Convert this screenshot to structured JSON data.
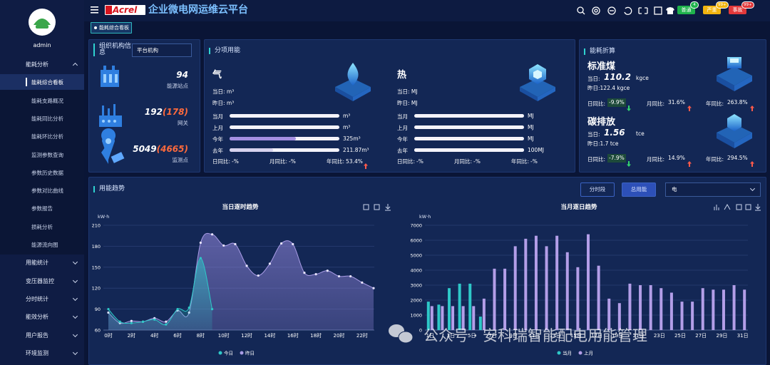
{
  "sidebar": {
    "user": "admin",
    "menu": [
      {
        "label": "能耗分析",
        "children": [
          "能耗综合看板",
          "能耗支路概况",
          "能耗同比分析",
          "能耗环比分析",
          "监测参数查询",
          "参数历史数据",
          "参数对比曲线",
          "参数报告",
          "损耗分析",
          "能源流向图"
        ]
      },
      {
        "label": "用能统计"
      },
      {
        "label": "变压器监控"
      },
      {
        "label": "分时统计"
      },
      {
        "label": "能效分析"
      },
      {
        "label": "用户报告"
      },
      {
        "label": "环境监测"
      }
    ]
  },
  "header": {
    "logo": "Acrel",
    "title": "企业微电网运维云平台",
    "alarms": [
      {
        "label": "普通",
        "count": "4",
        "color": "#1fb24c"
      },
      {
        "label": "严重",
        "count": "99+",
        "color": "#f1b40f"
      },
      {
        "label": "事故",
        "count": "99+",
        "color": "#e2383a"
      }
    ],
    "tab": "能耗综合看板"
  },
  "org": {
    "title": "组织机构信息",
    "select": "平台机构",
    "stats": [
      {
        "value": "94",
        "label": "能源站点"
      },
      {
        "value": "192",
        "extra": "(178)",
        "label": "网关"
      },
      {
        "value": "5049",
        "extra": "(4665)",
        "label": "监测点"
      }
    ]
  },
  "sub_energy": {
    "title": "分项用能",
    "groups": [
      {
        "name": "气",
        "today": "当日: m³",
        "yesterday": "昨日: m³",
        "rows": [
          {
            "label": "当月",
            "value": null,
            "value_label": "m³",
            "color": "#a48fe2"
          },
          {
            "label": "上月",
            "value": null,
            "value_label": "m³",
            "color": "#a48fe2"
          },
          {
            "label": "今年",
            "value": 325,
            "value_label": "325m³",
            "color": "#a48fe2"
          },
          {
            "label": "去年",
            "value": 211.87,
            "value_label": "211.87m³",
            "color": "#d7d2ee"
          }
        ],
        "compare": [
          {
            "label": "日同比:",
            "value": "-%"
          },
          {
            "label": "月同比:",
            "value": "-%"
          },
          {
            "label": "年同比:",
            "value": "53.4%",
            "trend": "up"
          }
        ]
      },
      {
        "name": "热",
        "today": "当日: MJ",
        "yesterday": "昨日: MJ",
        "rows": [
          {
            "label": "当月",
            "value": null,
            "value_label": "MJ",
            "color": "#a48fe2"
          },
          {
            "label": "上月",
            "value": null,
            "value_label": "MJ",
            "color": "#a48fe2"
          },
          {
            "label": "今年",
            "value": null,
            "value_label": "MJ",
            "color": "#a48fe2"
          },
          {
            "label": "去年",
            "value": 100,
            "value_label": "100MJ",
            "color": "#f4f3fa"
          }
        ],
        "compare": [
          {
            "label": "日同比:",
            "value": "-%"
          },
          {
            "label": "月同比:",
            "value": "-%"
          },
          {
            "label": "年同比:",
            "value": "-%"
          }
        ]
      }
    ]
  },
  "conversion": {
    "title": "能耗折算",
    "items": [
      {
        "name": "标准煤",
        "today_label": "当日:",
        "today": "110.2",
        "unit": "kgce",
        "yesterday": "昨日:122.4 kgce",
        "compare": [
          {
            "label": "日同比:",
            "value": "-9.9%",
            "trend": "down"
          },
          {
            "label": "月同比:",
            "value": "31.6%",
            "trend": "up"
          },
          {
            "label": "年同比:",
            "value": "263.8%",
            "trend": "up"
          }
        ]
      },
      {
        "name": "碳排放",
        "today_label": "当日:",
        "today": "1.56",
        "unit": "tce",
        "yesterday": "昨日:1.7 tce",
        "compare": [
          {
            "label": "日同比:",
            "value": "-7.9%",
            "trend": "down"
          },
          {
            "label": "月同比:",
            "value": "14.9%",
            "trend": "up"
          },
          {
            "label": "年同比:",
            "value": "294.5%",
            "trend": "up"
          }
        ]
      }
    ]
  },
  "trend_panel": {
    "title": "用能趋势",
    "buttons": [
      "分时段",
      "总用能"
    ],
    "select": "电"
  },
  "watermark": "公众号 · 安科瑞智能配电用能管理",
  "chart_data": [
    {
      "type": "line",
      "title": "当日逐时趋势",
      "ylabel": "kW·h",
      "categories": [
        "0时",
        null,
        "2时",
        null,
        "4时",
        null,
        "6时",
        null,
        "8时",
        null,
        "10时",
        null,
        "12时",
        null,
        "14时",
        null,
        "16时",
        null,
        "18时",
        null,
        "20时",
        null,
        "22时",
        null
      ],
      "series": [
        {
          "name": "今日",
          "color": "#2ec8c8",
          "values": [
            90,
            72,
            70,
            72,
            75,
            68,
            90,
            92,
            163,
            90,
            null,
            null,
            null,
            null,
            null,
            null,
            null,
            null,
            null,
            null,
            null,
            null,
            null,
            null
          ]
        },
        {
          "name": "昨日",
          "color": "#a99ce6",
          "values": [
            85,
            70,
            73,
            72,
            77,
            72,
            88,
            85,
            185,
            197,
            181,
            183,
            152,
            138,
            155,
            184,
            183,
            142,
            140,
            145,
            137,
            137,
            128,
            120
          ]
        }
      ],
      "ylim": [
        60,
        210
      ],
      "yticks": [
        60,
        90,
        120,
        150,
        180,
        210
      ],
      "grid": true
    },
    {
      "type": "bar",
      "title": "当月逐日趋势",
      "ylabel": "kW·h",
      "categories": [
        "1日",
        null,
        "3日",
        null,
        "5日",
        null,
        "7日",
        null,
        "9日",
        null,
        "11日",
        null,
        "13日",
        null,
        "15日",
        null,
        "17日",
        null,
        "19日",
        null,
        "21日",
        null,
        "23日",
        null,
        "25日",
        null,
        "27日",
        null,
        "29日",
        null,
        "31日"
      ],
      "series": [
        {
          "name": "当月",
          "color": "#2ec8c8",
          "values": [
            1900,
            1700,
            2800,
            3100,
            3100,
            900,
            null,
            null,
            null,
            null,
            null,
            null,
            null,
            null,
            null,
            null,
            null,
            null,
            null,
            null,
            null,
            null,
            null,
            null,
            null,
            null,
            null,
            null,
            null,
            null,
            null
          ]
        },
        {
          "name": "上月",
          "color": "#b39ee8",
          "values": [
            1600,
            1600,
            1600,
            1600,
            1600,
            2100,
            4100,
            4100,
            5600,
            6100,
            6300,
            5600,
            6300,
            5200,
            4200,
            6400,
            4300,
            2100,
            1800,
            3100,
            3000,
            3000,
            2800,
            2500,
            1900,
            1900,
            2800,
            2700,
            2700,
            3000,
            2700
          ]
        }
      ],
      "ylim": [
        0,
        7000
      ],
      "yticks": [
        0,
        1000,
        2000,
        3000,
        4000,
        5000,
        6000,
        7000
      ],
      "grid": true
    }
  ]
}
